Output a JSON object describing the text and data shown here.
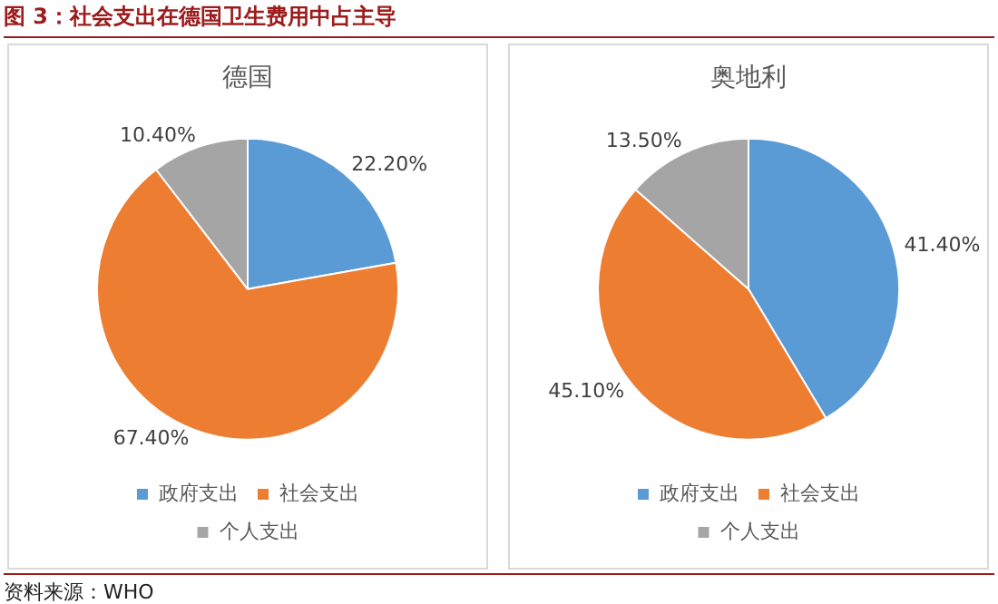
{
  "chart_data": [
    {
      "type": "pie",
      "title": "德国",
      "categories": [
        "政府支出",
        "社会支出",
        "个人支出"
      ],
      "values": [
        22.2,
        67.4,
        10.4
      ],
      "value_labels": [
        "22.20%",
        "67.40%",
        "10.40%"
      ],
      "colors": [
        "#5b9bd5",
        "#ed7d31",
        "#a5a5a5"
      ],
      "legend": "bottom",
      "annotations": [
        "图 3：社会支出在德国卫生费用中占主导"
      ]
    },
    {
      "type": "pie",
      "title": "奥地利",
      "categories": [
        "政府支出",
        "社会支出",
        "个人支出"
      ],
      "values": [
        41.4,
        45.1,
        13.5
      ],
      "value_labels": [
        "41.40%",
        "45.10%",
        "13.50%"
      ],
      "colors": [
        "#5b9bd5",
        "#ed7d31",
        "#a5a5a5"
      ],
      "legend": "bottom",
      "annotations": [
        "资料来源：WHO"
      ]
    }
  ]
}
